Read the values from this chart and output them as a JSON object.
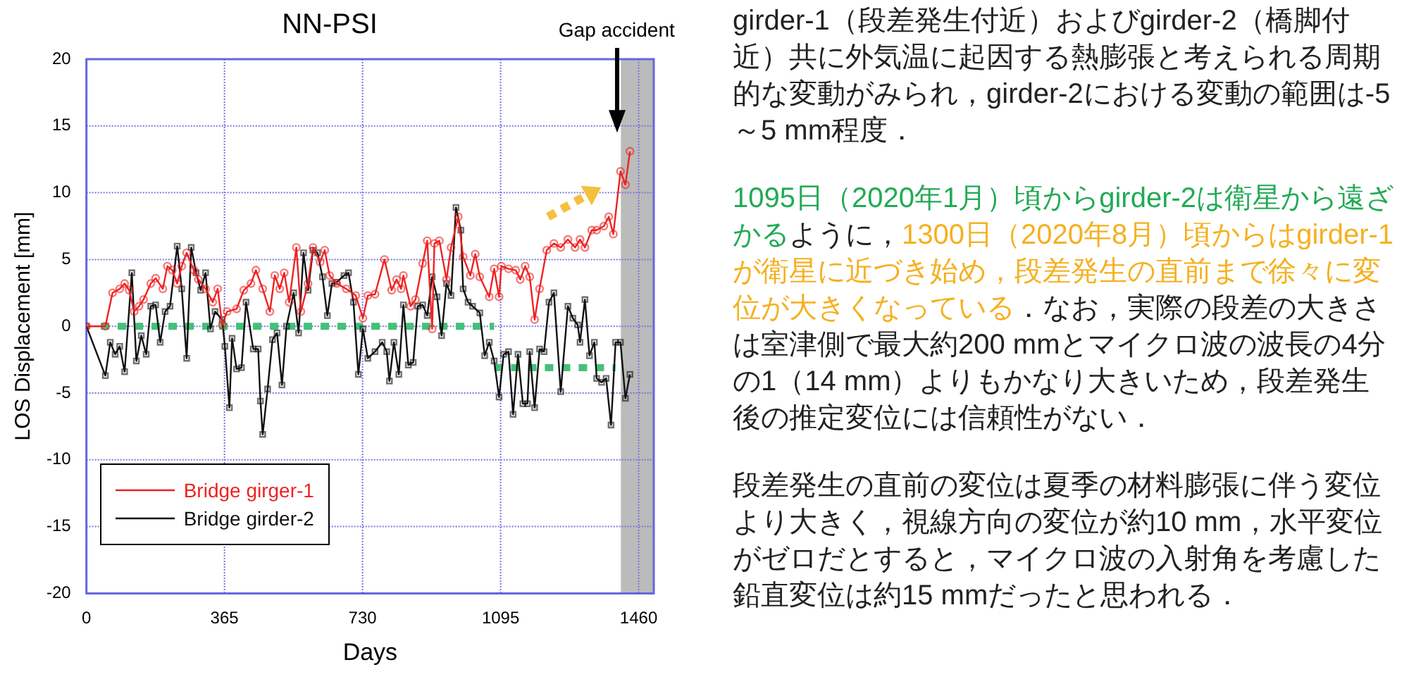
{
  "chart_data": {
    "type": "line",
    "title": "NN-PSI",
    "xlabel": "Days",
    "ylabel": "LOS Displacement [mm]",
    "xlim": [
      0,
      1500
    ],
    "xticks": [
      0,
      365,
      730,
      1095,
      1460
    ],
    "ylim": [
      -20,
      20
    ],
    "yticks": [
      -20,
      -15,
      -10,
      -5,
      0,
      5,
      10,
      15,
      20
    ],
    "grid": true,
    "legend": "bottom left",
    "bands": [
      {
        "axis": "x",
        "from": 1413,
        "to": 1500,
        "color": "#bbbbbb",
        "label": "Gap accident"
      }
    ],
    "series": [
      {
        "name": "Bridge girger-1",
        "color": "#ee2222",
        "marker": "circle",
        "x": [
          0,
          50,
          69,
          88,
          101,
          113,
          126,
          139,
          151,
          170,
          183,
          202,
          214,
          227,
          240,
          252,
          265,
          284,
          296,
          315,
          334,
          347,
          359,
          372,
          397,
          416,
          435,
          448,
          466,
          485,
          498,
          511,
          523,
          536,
          555,
          567,
          586,
          599,
          618,
          630,
          643,
          662,
          687,
          712,
          731,
          744,
          763,
          788,
          807,
          820,
          832,
          838,
          857,
          870,
          889,
          901,
          914,
          920,
          933,
          952,
          964,
          983,
          996,
          1015,
          1028,
          1040,
          1065,
          1078,
          1091,
          1097,
          1116,
          1135,
          1147,
          1160,
          1172,
          1185,
          1198,
          1217,
          1236,
          1254,
          1273,
          1292,
          1305,
          1318,
          1336,
          1349,
          1368,
          1381,
          1393,
          1412,
          1425,
          1437
        ],
        "values": [
          0,
          0,
          2.5,
          2.8,
          3.2,
          2.7,
          1.1,
          1.5,
          2.0,
          3.2,
          3.6,
          2.8,
          4.5,
          4.2,
          3.2,
          4.5,
          5.5,
          4.2,
          3.5,
          2.8,
          1.8,
          2.8,
          0.1,
          1.1,
          1.3,
          2.7,
          3.2,
          4.2,
          2.8,
          1.1,
          3.8,
          2.8,
          4.0,
          1.8,
          5.9,
          1.1,
          3.2,
          5.9,
          4.8,
          5.7,
          3.8,
          3.2,
          2.8,
          2.3,
          0.6,
          2.3,
          2.4,
          5.0,
          2.7,
          3.5,
          2.8,
          3.8,
          1.5,
          2.0,
          4.7,
          6.4,
          -0.2,
          6.2,
          6.4,
          3.5,
          5.9,
          8.2,
          5.2,
          3.8,
          5.4,
          3.7,
          2.2,
          4.3,
          2.2,
          4.5,
          4.3,
          4.2,
          3.5,
          4.5,
          3.7,
          0.5,
          2.8,
          5.7,
          6.2,
          5.9,
          6.5,
          5.9,
          6.5,
          5.9,
          7.2,
          7.2,
          7.5,
          8.2,
          6.9,
          11.6,
          10.6,
          13.1
        ]
      },
      {
        "name": "Bridge girder-2",
        "color": "#111111",
        "marker": "square",
        "x": [
          0,
          50,
          63,
          76,
          88,
          101,
          120,
          132,
          145,
          158,
          170,
          183,
          195,
          208,
          221,
          240,
          252,
          265,
          277,
          290,
          302,
          315,
          328,
          340,
          359,
          366,
          378,
          385,
          397,
          410,
          422,
          441,
          454,
          460,
          466,
          479,
          492,
          504,
          517,
          529,
          548,
          561,
          574,
          586,
          599,
          611,
          624,
          637,
          649,
          662,
          681,
          693,
          706,
          719,
          731,
          744,
          763,
          782,
          794,
          801,
          813,
          826,
          838,
          851,
          864,
          876,
          889,
          901,
          914,
          927,
          939,
          952,
          964,
          977,
          990,
          996,
          1009,
          1021,
          1040,
          1053,
          1065,
          1078,
          1091,
          1103,
          1116,
          1128,
          1141,
          1154,
          1166,
          1172,
          1185,
          1198,
          1210,
          1223,
          1236,
          1254,
          1273,
          1286,
          1299,
          1305,
          1318,
          1330,
          1343,
          1349,
          1362,
          1374,
          1387,
          1399,
          1412,
          1425,
          1437
        ],
        "values": [
          0,
          -3.7,
          -1.2,
          -2.1,
          -1.5,
          -3.4,
          4.0,
          -2.6,
          -0.7,
          -2.1,
          1.5,
          1.6,
          -1.2,
          1.1,
          1.5,
          6.0,
          2.8,
          -2.4,
          5.9,
          4.0,
          2.7,
          4.0,
          -0.2,
          1.1,
          0.5,
          -1.5,
          -6.1,
          -0.9,
          -3.2,
          -3.1,
          1.8,
          -1.7,
          -1.7,
          -5.6,
          -8.1,
          -4.7,
          -1.0,
          -0.5,
          -4.4,
          0.0,
          2.5,
          -0.5,
          5.5,
          2.7,
          5.7,
          5.5,
          3.7,
          0.8,
          3.2,
          3.3,
          3.8,
          4.0,
          1.8,
          -3.6,
          -0.2,
          -2.4,
          -1.9,
          -1.2,
          -1.9,
          -4.1,
          -1.2,
          -3.6,
          1.6,
          -2.9,
          -2.7,
          1.5,
          1.6,
          0.8,
          3.7,
          2.2,
          -0.7,
          3.2,
          2.3,
          8.9,
          7.2,
          2.8,
          1.8,
          1.5,
          1.0,
          -2.2,
          -1.2,
          -2.6,
          -5.3,
          -2.1,
          -1.9,
          -6.6,
          -2.1,
          -5.8,
          -5.8,
          -1.9,
          -6.1,
          -1.7,
          -1.9,
          1.8,
          2.5,
          -4.9,
          1.5,
          0.6,
          0.1,
          -1.2,
          2.0,
          -2.2,
          -1.2,
          -3.9,
          -4.2,
          -3.9,
          -7.4,
          -1.2,
          -1.2,
          -5.4,
          -3.6
        ]
      },
      {
        "color": "#44c07a",
        "marker": "none",
        "line_style": "dotted",
        "x": [
          38,
          1078
        ],
        "values": [
          0,
          0
        ]
      },
      {
        "color": "#44c07a",
        "marker": "none",
        "line_style": "dotted",
        "x": [
          1078,
          1399
        ],
        "values": [
          -3.1,
          -3.1
        ]
      }
    ],
    "annotations": [
      "girder-1（段差発生付近）およびgirder-2（橋脚付近）共に外気温に起因する熱膨張と考えられる周期的な変動がみられ，girder-2における変動の範囲は-5～5 mm程度．",
      "1095日（2020年1月）頃からgirder-2は衛星から遠ざかる",
      "ように，",
      "1300日（2020年8月）頃からはgirder-1が衛星に近づき始め，段差発生の直前まで徐々に変位が大きくなっている",
      "．なお，実際の段差の大きさは室津側で最大約200 mmとマイクロ波の波長の4分の1（14 mm）よりもかなり大きいため，段差発生後の推定変位には信頼性がない．",
      "段差発生の直前の変位は夏季の材料膨張に伴う変位より大きく，視線方向の変位が約10 mm，水平変位がゼロだとすると，マイクロ波の入射角を考慮した鉛直変位は約15 mmだったと思われる．"
    ]
  }
}
